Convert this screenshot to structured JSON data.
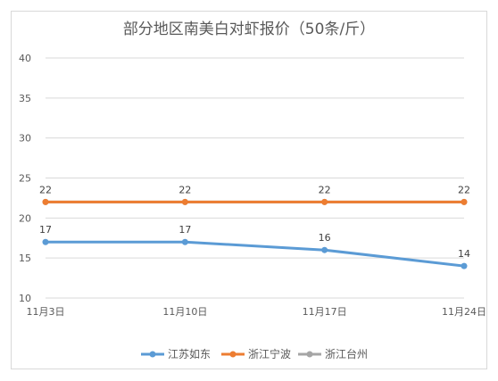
{
  "chart_data": {
    "type": "line",
    "title": "部分地区南美白对虾报价（50条/斤）",
    "categories": [
      "11月3日",
      "11月10日",
      "11月17日",
      "11月24日"
    ],
    "ylim": [
      10,
      40
    ],
    "yticks": [
      10,
      15,
      20,
      25,
      30,
      35,
      40
    ],
    "grid": true,
    "legend_position": "bottom",
    "series": [
      {
        "name": "江苏如东",
        "values": [
          17,
          17,
          16,
          14
        ],
        "color": "#5b9bd5"
      },
      {
        "name": "浙江宁波",
        "values": [
          22,
          22,
          22,
          22
        ],
        "color": "#ed7d31"
      },
      {
        "name": "浙江台州",
        "values": [
          22,
          22,
          22,
          22
        ],
        "color": "#a5a5a5"
      }
    ]
  }
}
